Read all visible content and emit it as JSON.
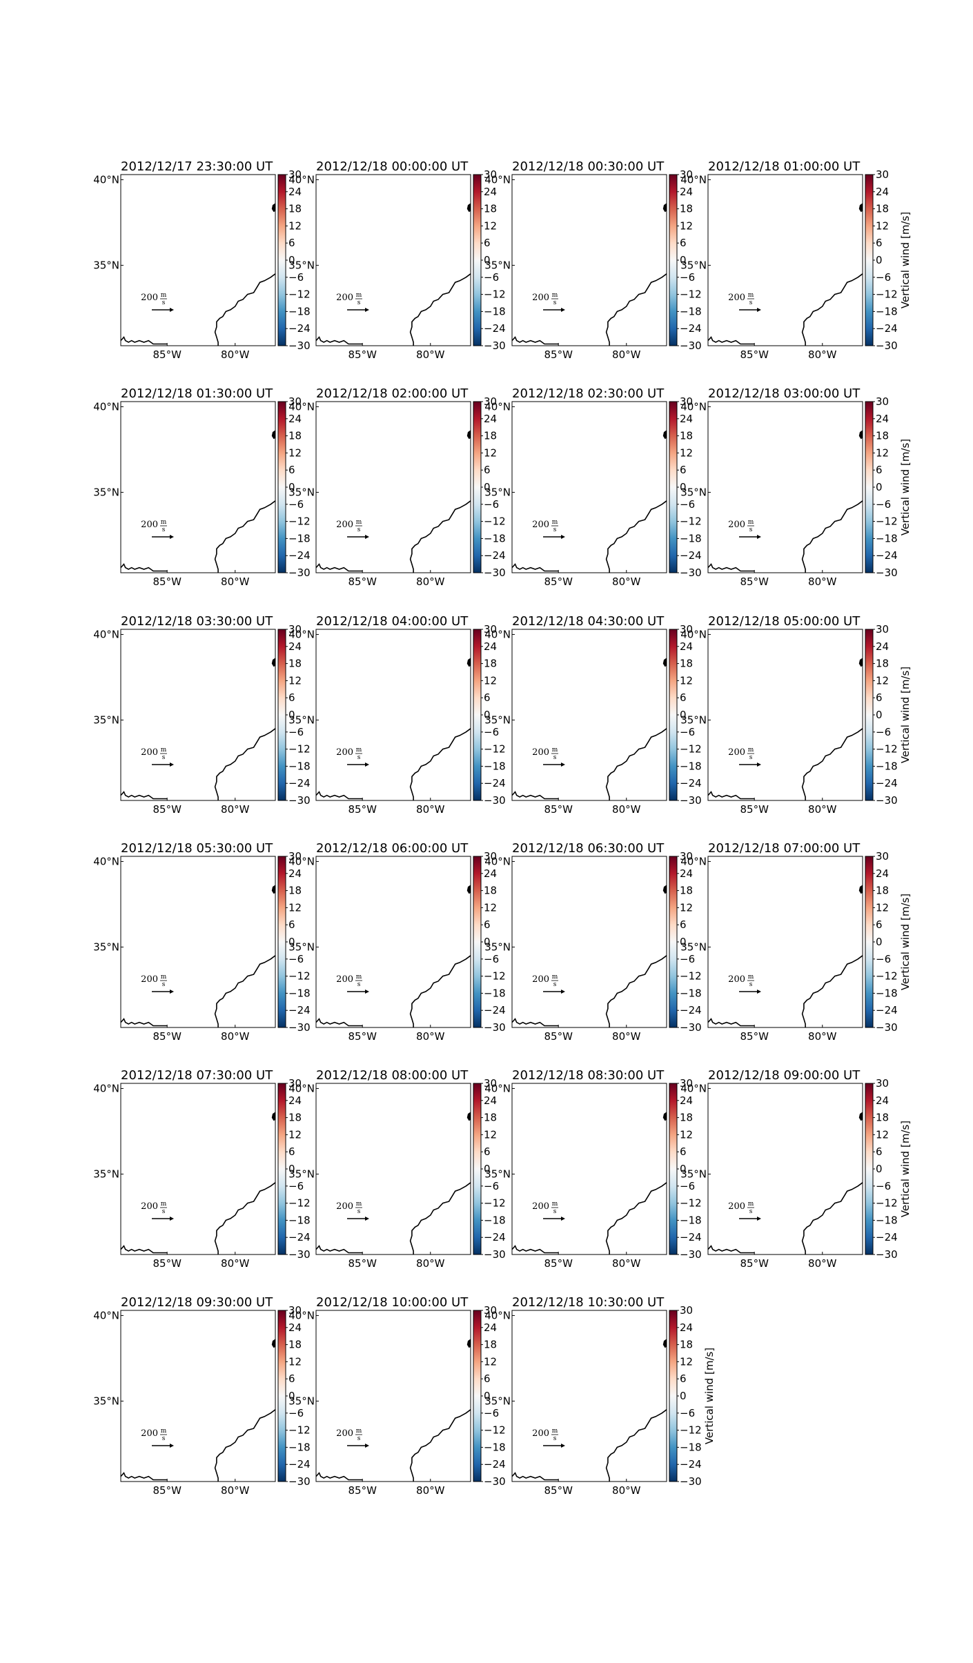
{
  "figure": {
    "panel_titles": [
      "2012/12/17 23:30:00 UT",
      "2012/12/18 00:00:00 UT",
      "2012/12/18 00:30:00 UT",
      "2012/12/18 01:00:00 UT",
      "2012/12/18 01:30:00 UT",
      "2012/12/18 02:00:00 UT",
      "2012/12/18 02:30:00 UT",
      "2012/12/18 03:00:00 UT",
      "2012/12/18 03:30:00 UT",
      "2012/12/18 04:00:00 UT",
      "2012/12/18 04:30:00 UT",
      "2012/12/18 05:00:00 UT",
      "2012/12/18 05:30:00 UT",
      "2012/12/18 06:00:00 UT",
      "2012/12/18 06:30:00 UT",
      "2012/12/18 07:00:00 UT",
      "2012/12/18 07:30:00 UT",
      "2012/12/18 08:00:00 UT",
      "2012/12/18 08:30:00 UT",
      "2012/12/18 09:00:00 UT",
      "2012/12/18 09:30:00 UT",
      "2012/12/18 10:00:00 UT",
      "2012/12/18 10:30:00 UT"
    ]
  },
  "chart_data": {
    "type": "map-quiver",
    "x_ticks": [
      "85°W",
      "80°W"
    ],
    "y_ticks": [
      "40°N",
      "35°N"
    ],
    "colorbar": {
      "label": "Vertical wind [m/s]",
      "ticks": [
        30,
        24,
        18,
        12,
        6,
        0,
        -6,
        -12,
        -18,
        -24,
        -30
      ],
      "range": [
        -30,
        30
      ],
      "colormap": "RdBu_r",
      "colors": [
        "#67001f",
        "#b2182b",
        "#d6604d",
        "#f4a582",
        "#fddbc7",
        "#f7f7f7",
        "#d1e5f0",
        "#92c5de",
        "#4393c3",
        "#2166ac",
        "#053061"
      ]
    },
    "quiver_key": {
      "value": "200",
      "unit_num": "m",
      "unit_den": "s"
    },
    "grid": false
  }
}
